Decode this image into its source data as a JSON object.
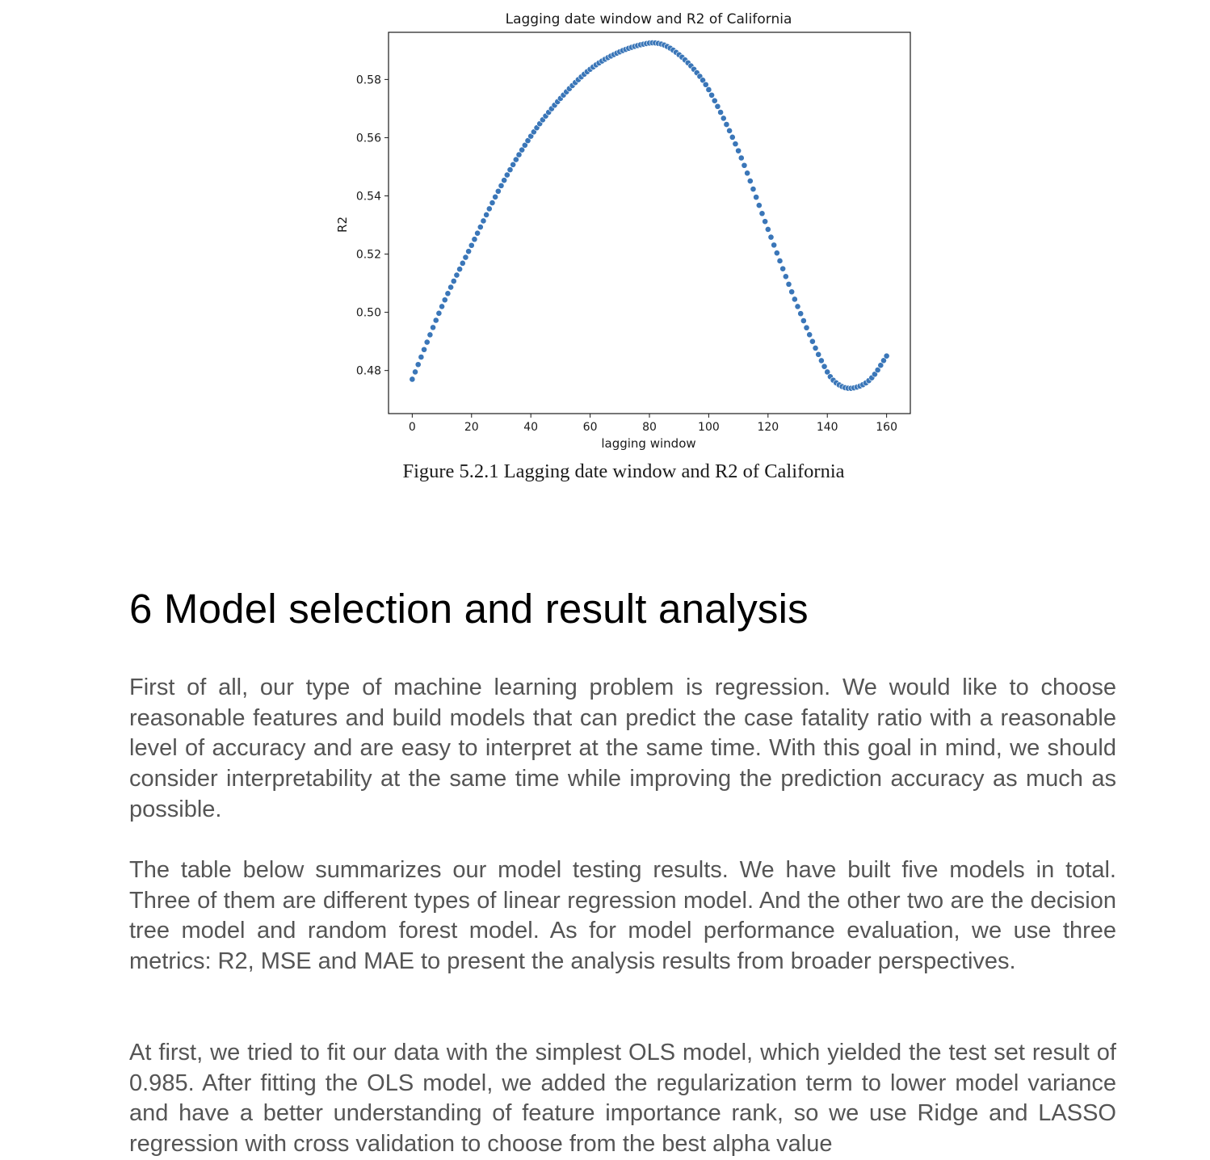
{
  "chart_data": {
    "type": "scatter",
    "title": "Lagging date window and R2 of California",
    "xlabel": "lagging window",
    "ylabel": "R2",
    "xlim": [
      -8,
      168
    ],
    "ylim": [
      0.4652,
      0.5962
    ],
    "xticks": [
      0,
      20,
      40,
      60,
      80,
      100,
      120,
      140,
      160
    ],
    "xtick_labels": [
      "0",
      "20",
      "40",
      "60",
      "80",
      "100",
      "120",
      "140",
      "160"
    ],
    "yticks": [
      0.48,
      0.5,
      0.52,
      0.54,
      0.56,
      0.58
    ],
    "ytick_labels": [
      "0.48",
      "0.50",
      "0.52",
      "0.54",
      "0.56",
      "0.58"
    ],
    "grid": false,
    "color": "#3a76b8",
    "x_start": 0,
    "x_end": 160,
    "x_step": 1,
    "curve_knots": {
      "x": [
        0,
        10,
        20,
        30,
        40,
        50,
        60,
        70,
        80,
        85,
        90,
        95,
        100,
        110,
        120,
        130,
        140,
        145,
        150,
        155,
        160
      ],
      "y": [
        0.477,
        0.502,
        0.523,
        0.5435,
        0.5605,
        0.5735,
        0.5835,
        0.5895,
        0.5925,
        0.5918,
        0.5885,
        0.5835,
        0.5765,
        0.5555,
        0.5285,
        0.502,
        0.4795,
        0.4745,
        0.4743,
        0.4775,
        0.485
      ]
    }
  },
  "caption": "Figure 5.2.1 Lagging date window and R2 of California",
  "section": {
    "heading": "6 Model selection and result analysis",
    "paragraphs": [
      "First of all, our type of machine learning problem is regression. We would like to choose reasonable features and build models that can predict the case fatality ratio with a reasonable level of accuracy and are easy to interpret at the same time. With this goal in mind, we should consider interpretability at the same time while improving the prediction accuracy as much as possible.",
      "The table below summarizes our model testing results. We have built five models in total. Three of them are different types of linear regression model. And the other two are the decision tree model and random forest model. As for model performance evaluation, we use three metrics: R2, MSE and MAE to present the analysis results from broader perspectives.",
      "At first, we tried to fit our data with the simplest OLS model, which yielded the test set result of 0.985. After fitting the OLS model, we added the regularization term to lower model variance and have a better understanding of feature importance rank, so we use Ridge and LASSO regression with cross validation to choose from the best alpha value"
    ]
  }
}
